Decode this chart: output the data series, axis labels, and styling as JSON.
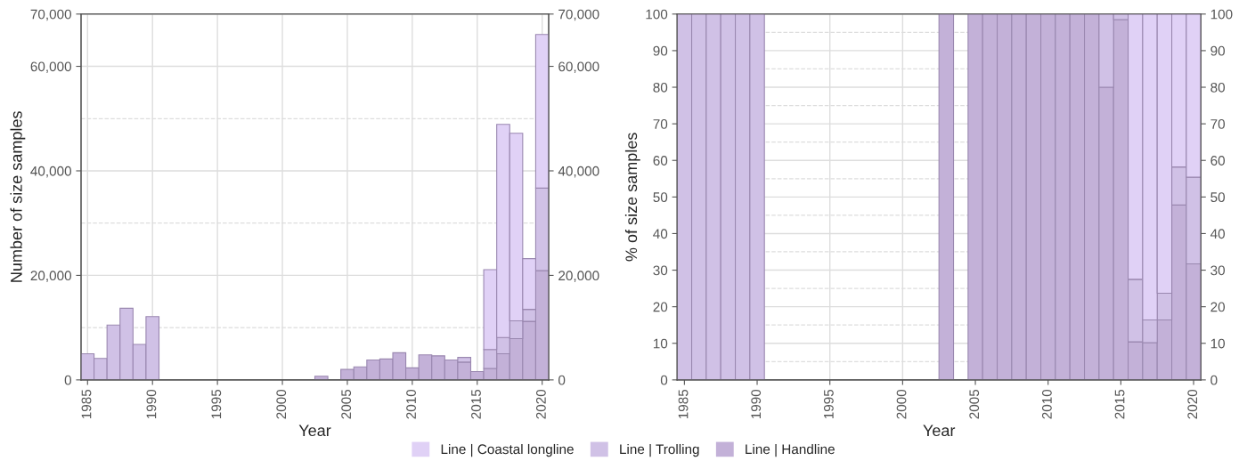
{
  "chart_data": [
    {
      "type": "bar",
      "stacked": true,
      "xlabel": "Year",
      "ylabel": "Number of size samples",
      "grid": true,
      "legend": "bottom",
      "x": [
        1985,
        1986,
        1987,
        1988,
        1989,
        1990,
        1991,
        1992,
        1993,
        1994,
        1995,
        1996,
        1997,
        1998,
        1999,
        2000,
        2001,
        2002,
        2003,
        2004,
        2005,
        2006,
        2007,
        2008,
        2009,
        2010,
        2011,
        2012,
        2013,
        2014,
        2015,
        2016,
        2017,
        2018,
        2019,
        2020
      ],
      "xlim": [
        1984.5,
        2020.5
      ],
      "xticks": [
        1985,
        1990,
        1995,
        2000,
        2005,
        2010,
        2015,
        2020
      ],
      "ylim": [
        0,
        70000
      ],
      "yticks": [
        {
          "value": 0,
          "label": "0"
        },
        {
          "value": 10000,
          "label": null
        },
        {
          "value": 20000,
          "label": "20,000"
        },
        {
          "value": 30000,
          "label": null
        },
        {
          "value": 40000,
          "label": "40,000"
        },
        {
          "value": 50000,
          "label": null
        },
        {
          "value": 60000,
          "label": "60,000"
        },
        {
          "value": 70000,
          "label": "70,000"
        }
      ],
      "y2lim": [
        0,
        70000
      ],
      "y2ticks": [
        {
          "value": 0,
          "label": "0"
        },
        {
          "value": 20000,
          "label": "20,000"
        },
        {
          "value": 40000,
          "label": "40,000"
        },
        {
          "value": 60000,
          "label": "60,000"
        },
        {
          "value": 70000,
          "label": "70,000"
        }
      ],
      "series": [
        {
          "name": "Line | Handline",
          "color": "#c3b1d8",
          "values": [
            null,
            null,
            null,
            null,
            null,
            null,
            null,
            null,
            null,
            null,
            null,
            null,
            null,
            null,
            null,
            null,
            null,
            null,
            700,
            null,
            2000,
            2500,
            3800,
            4000,
            5200,
            2300,
            4800,
            4600,
            3800,
            3400,
            1600,
            2200,
            5000,
            7900,
            11200,
            20900
          ]
        },
        {
          "name": "Line | Trolling",
          "color": "#d0c1e6",
          "values": [
            5000,
            4100,
            10500,
            13700,
            6800,
            12100,
            null,
            null,
            null,
            null,
            null,
            null,
            null,
            null,
            null,
            null,
            null,
            null,
            null,
            null,
            null,
            null,
            null,
            null,
            null,
            null,
            null,
            null,
            null,
            900,
            null,
            3600,
            3100,
            3400,
            2300,
            15800
          ]
        },
        {
          "name": "Line | Coastal longline",
          "color": "#e0d1f6",
          "values": [
            null,
            null,
            null,
            null,
            null,
            null,
            null,
            null,
            null,
            null,
            null,
            null,
            null,
            null,
            null,
            null,
            null,
            null,
            null,
            null,
            null,
            null,
            null,
            null,
            null,
            null,
            null,
            null,
            null,
            null,
            null,
            15300,
            40800,
            35900,
            9700,
            29400
          ]
        }
      ]
    },
    {
      "type": "bar",
      "stacked": true,
      "xlabel": "Year",
      "ylabel": "% of size samples",
      "grid": true,
      "x": [
        1985,
        1986,
        1987,
        1988,
        1989,
        1990,
        1991,
        1992,
        1993,
        1994,
        1995,
        1996,
        1997,
        1998,
        1999,
        2000,
        2001,
        2002,
        2003,
        2004,
        2005,
        2006,
        2007,
        2008,
        2009,
        2010,
        2011,
        2012,
        2013,
        2014,
        2015,
        2016,
        2017,
        2018,
        2019,
        2020
      ],
      "xlim": [
        1984.5,
        2020.5
      ],
      "xticks": [
        1985,
        1990,
        1995,
        2000,
        2005,
        2010,
        2015,
        2020
      ],
      "ylim": [
        0,
        100
      ],
      "yticks": [
        0,
        {
          "value": 5,
          "label": null
        },
        10,
        {
          "value": 15,
          "label": null
        },
        20,
        {
          "value": 25,
          "label": null
        },
        30,
        {
          "value": 35,
          "label": null
        },
        40,
        {
          "value": 45,
          "label": null
        },
        50,
        {
          "value": 55,
          "label": null
        },
        60,
        {
          "value": 65,
          "label": null
        },
        70,
        {
          "value": 75,
          "label": null
        },
        80,
        {
          "value": 85,
          "label": null
        },
        90,
        {
          "value": 95,
          "label": null
        },
        100
      ],
      "y2lim": [
        0,
        100
      ],
      "y2ticks": [
        0,
        10,
        20,
        30,
        40,
        50,
        60,
        70,
        80,
        90,
        100
      ],
      "series": [
        {
          "color": "#c3b1d8",
          "values": [
            null,
            null,
            null,
            null,
            null,
            null,
            null,
            null,
            null,
            null,
            null,
            null,
            null,
            null,
            null,
            null,
            null,
            null,
            100,
            null,
            100,
            100,
            100,
            100,
            100,
            100,
            100,
            100,
            100,
            80,
            98.5,
            10.4,
            10.2,
            16.4,
            47.8,
            31.7
          ]
        },
        {
          "color": "#d0c1e6",
          "values": [
            100,
            100,
            100,
            100,
            100,
            100,
            null,
            null,
            null,
            null,
            null,
            null,
            null,
            null,
            null,
            null,
            null,
            null,
            null,
            null,
            null,
            null,
            null,
            null,
            null,
            null,
            null,
            null,
            null,
            20,
            1.5,
            17.1,
            6.2,
            7.3,
            10.4,
            23.7
          ]
        },
        {
          "color": "#e0d1f6",
          "values": [
            null,
            null,
            null,
            null,
            null,
            null,
            null,
            null,
            null,
            null,
            null,
            null,
            null,
            null,
            null,
            null,
            null,
            null,
            null,
            null,
            null,
            null,
            null,
            null,
            null,
            null,
            null,
            null,
            null,
            null,
            null,
            72.5,
            83.6,
            76.3,
            41.8,
            44.6
          ]
        }
      ]
    }
  ]
}
